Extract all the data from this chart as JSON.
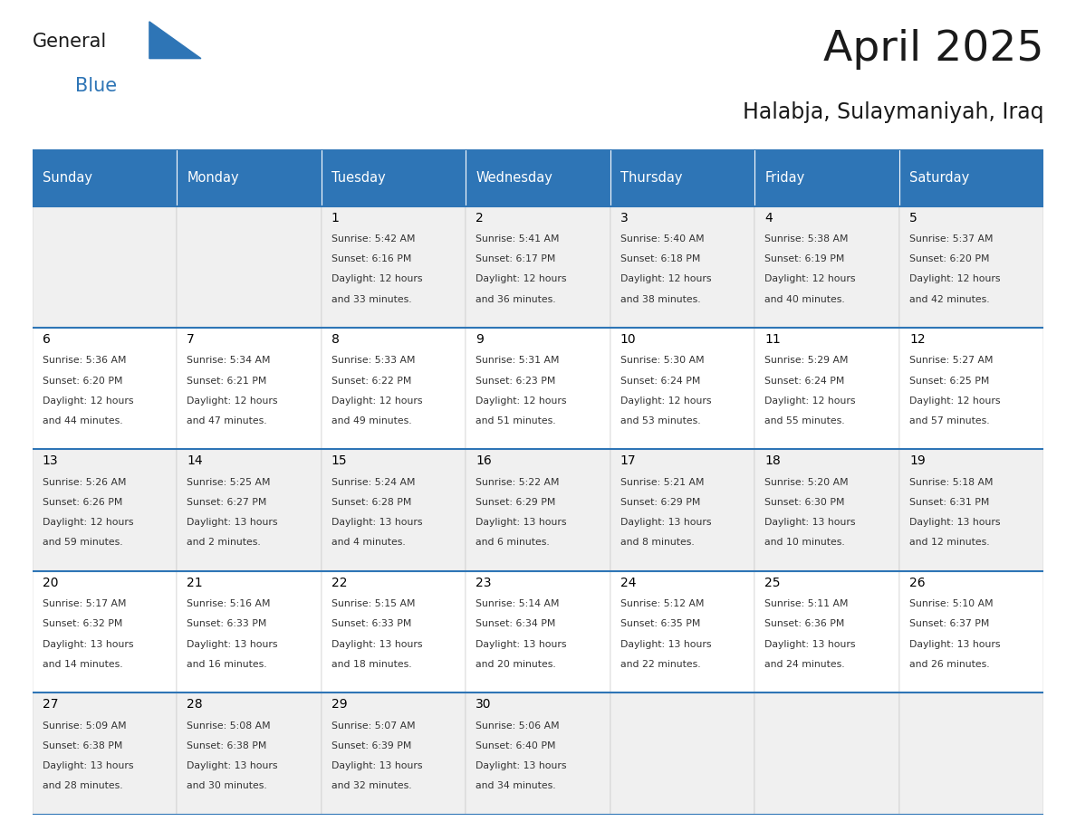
{
  "title": "April 2025",
  "subtitle": "Halabja, Sulaymaniyah, Iraq",
  "header_bg": "#2E75B6",
  "header_text": "#FFFFFF",
  "day_names": [
    "Sunday",
    "Monday",
    "Tuesday",
    "Wednesday",
    "Thursday",
    "Friday",
    "Saturday"
  ],
  "cell_bg_odd": "#F0F0F0",
  "cell_bg_even": "#FFFFFF",
  "cell_border": "#AAAAAA",
  "row_line_color": "#2E75B6",
  "title_color": "#1a1a1a",
  "subtitle_color": "#1a1a1a",
  "day_num_color": "#000000",
  "info_color": "#333333",
  "logo_general_color": "#1a1a1a",
  "logo_blue_color": "#2E75B6",
  "weeks": [
    [
      {
        "day": 0,
        "info": ""
      },
      {
        "day": 0,
        "info": ""
      },
      {
        "day": 1,
        "info": "Sunrise: 5:42 AM\nSunset: 6:16 PM\nDaylight: 12 hours\nand 33 minutes."
      },
      {
        "day": 2,
        "info": "Sunrise: 5:41 AM\nSunset: 6:17 PM\nDaylight: 12 hours\nand 36 minutes."
      },
      {
        "day": 3,
        "info": "Sunrise: 5:40 AM\nSunset: 6:18 PM\nDaylight: 12 hours\nand 38 minutes."
      },
      {
        "day": 4,
        "info": "Sunrise: 5:38 AM\nSunset: 6:19 PM\nDaylight: 12 hours\nand 40 minutes."
      },
      {
        "day": 5,
        "info": "Sunrise: 5:37 AM\nSunset: 6:20 PM\nDaylight: 12 hours\nand 42 minutes."
      }
    ],
    [
      {
        "day": 6,
        "info": "Sunrise: 5:36 AM\nSunset: 6:20 PM\nDaylight: 12 hours\nand 44 minutes."
      },
      {
        "day": 7,
        "info": "Sunrise: 5:34 AM\nSunset: 6:21 PM\nDaylight: 12 hours\nand 47 minutes."
      },
      {
        "day": 8,
        "info": "Sunrise: 5:33 AM\nSunset: 6:22 PM\nDaylight: 12 hours\nand 49 minutes."
      },
      {
        "day": 9,
        "info": "Sunrise: 5:31 AM\nSunset: 6:23 PM\nDaylight: 12 hours\nand 51 minutes."
      },
      {
        "day": 10,
        "info": "Sunrise: 5:30 AM\nSunset: 6:24 PM\nDaylight: 12 hours\nand 53 minutes."
      },
      {
        "day": 11,
        "info": "Sunrise: 5:29 AM\nSunset: 6:24 PM\nDaylight: 12 hours\nand 55 minutes."
      },
      {
        "day": 12,
        "info": "Sunrise: 5:27 AM\nSunset: 6:25 PM\nDaylight: 12 hours\nand 57 minutes."
      }
    ],
    [
      {
        "day": 13,
        "info": "Sunrise: 5:26 AM\nSunset: 6:26 PM\nDaylight: 12 hours\nand 59 minutes."
      },
      {
        "day": 14,
        "info": "Sunrise: 5:25 AM\nSunset: 6:27 PM\nDaylight: 13 hours\nand 2 minutes."
      },
      {
        "day": 15,
        "info": "Sunrise: 5:24 AM\nSunset: 6:28 PM\nDaylight: 13 hours\nand 4 minutes."
      },
      {
        "day": 16,
        "info": "Sunrise: 5:22 AM\nSunset: 6:29 PM\nDaylight: 13 hours\nand 6 minutes."
      },
      {
        "day": 17,
        "info": "Sunrise: 5:21 AM\nSunset: 6:29 PM\nDaylight: 13 hours\nand 8 minutes."
      },
      {
        "day": 18,
        "info": "Sunrise: 5:20 AM\nSunset: 6:30 PM\nDaylight: 13 hours\nand 10 minutes."
      },
      {
        "day": 19,
        "info": "Sunrise: 5:18 AM\nSunset: 6:31 PM\nDaylight: 13 hours\nand 12 minutes."
      }
    ],
    [
      {
        "day": 20,
        "info": "Sunrise: 5:17 AM\nSunset: 6:32 PM\nDaylight: 13 hours\nand 14 minutes."
      },
      {
        "day": 21,
        "info": "Sunrise: 5:16 AM\nSunset: 6:33 PM\nDaylight: 13 hours\nand 16 minutes."
      },
      {
        "day": 22,
        "info": "Sunrise: 5:15 AM\nSunset: 6:33 PM\nDaylight: 13 hours\nand 18 minutes."
      },
      {
        "day": 23,
        "info": "Sunrise: 5:14 AM\nSunset: 6:34 PM\nDaylight: 13 hours\nand 20 minutes."
      },
      {
        "day": 24,
        "info": "Sunrise: 5:12 AM\nSunset: 6:35 PM\nDaylight: 13 hours\nand 22 minutes."
      },
      {
        "day": 25,
        "info": "Sunrise: 5:11 AM\nSunset: 6:36 PM\nDaylight: 13 hours\nand 24 minutes."
      },
      {
        "day": 26,
        "info": "Sunrise: 5:10 AM\nSunset: 6:37 PM\nDaylight: 13 hours\nand 26 minutes."
      }
    ],
    [
      {
        "day": 27,
        "info": "Sunrise: 5:09 AM\nSunset: 6:38 PM\nDaylight: 13 hours\nand 28 minutes."
      },
      {
        "day": 28,
        "info": "Sunrise: 5:08 AM\nSunset: 6:38 PM\nDaylight: 13 hours\nand 30 minutes."
      },
      {
        "day": 29,
        "info": "Sunrise: 5:07 AM\nSunset: 6:39 PM\nDaylight: 13 hours\nand 32 minutes."
      },
      {
        "day": 30,
        "info": "Sunrise: 5:06 AM\nSunset: 6:40 PM\nDaylight: 13 hours\nand 34 minutes."
      },
      {
        "day": 0,
        "info": ""
      },
      {
        "day": 0,
        "info": ""
      },
      {
        "day": 0,
        "info": ""
      }
    ]
  ]
}
